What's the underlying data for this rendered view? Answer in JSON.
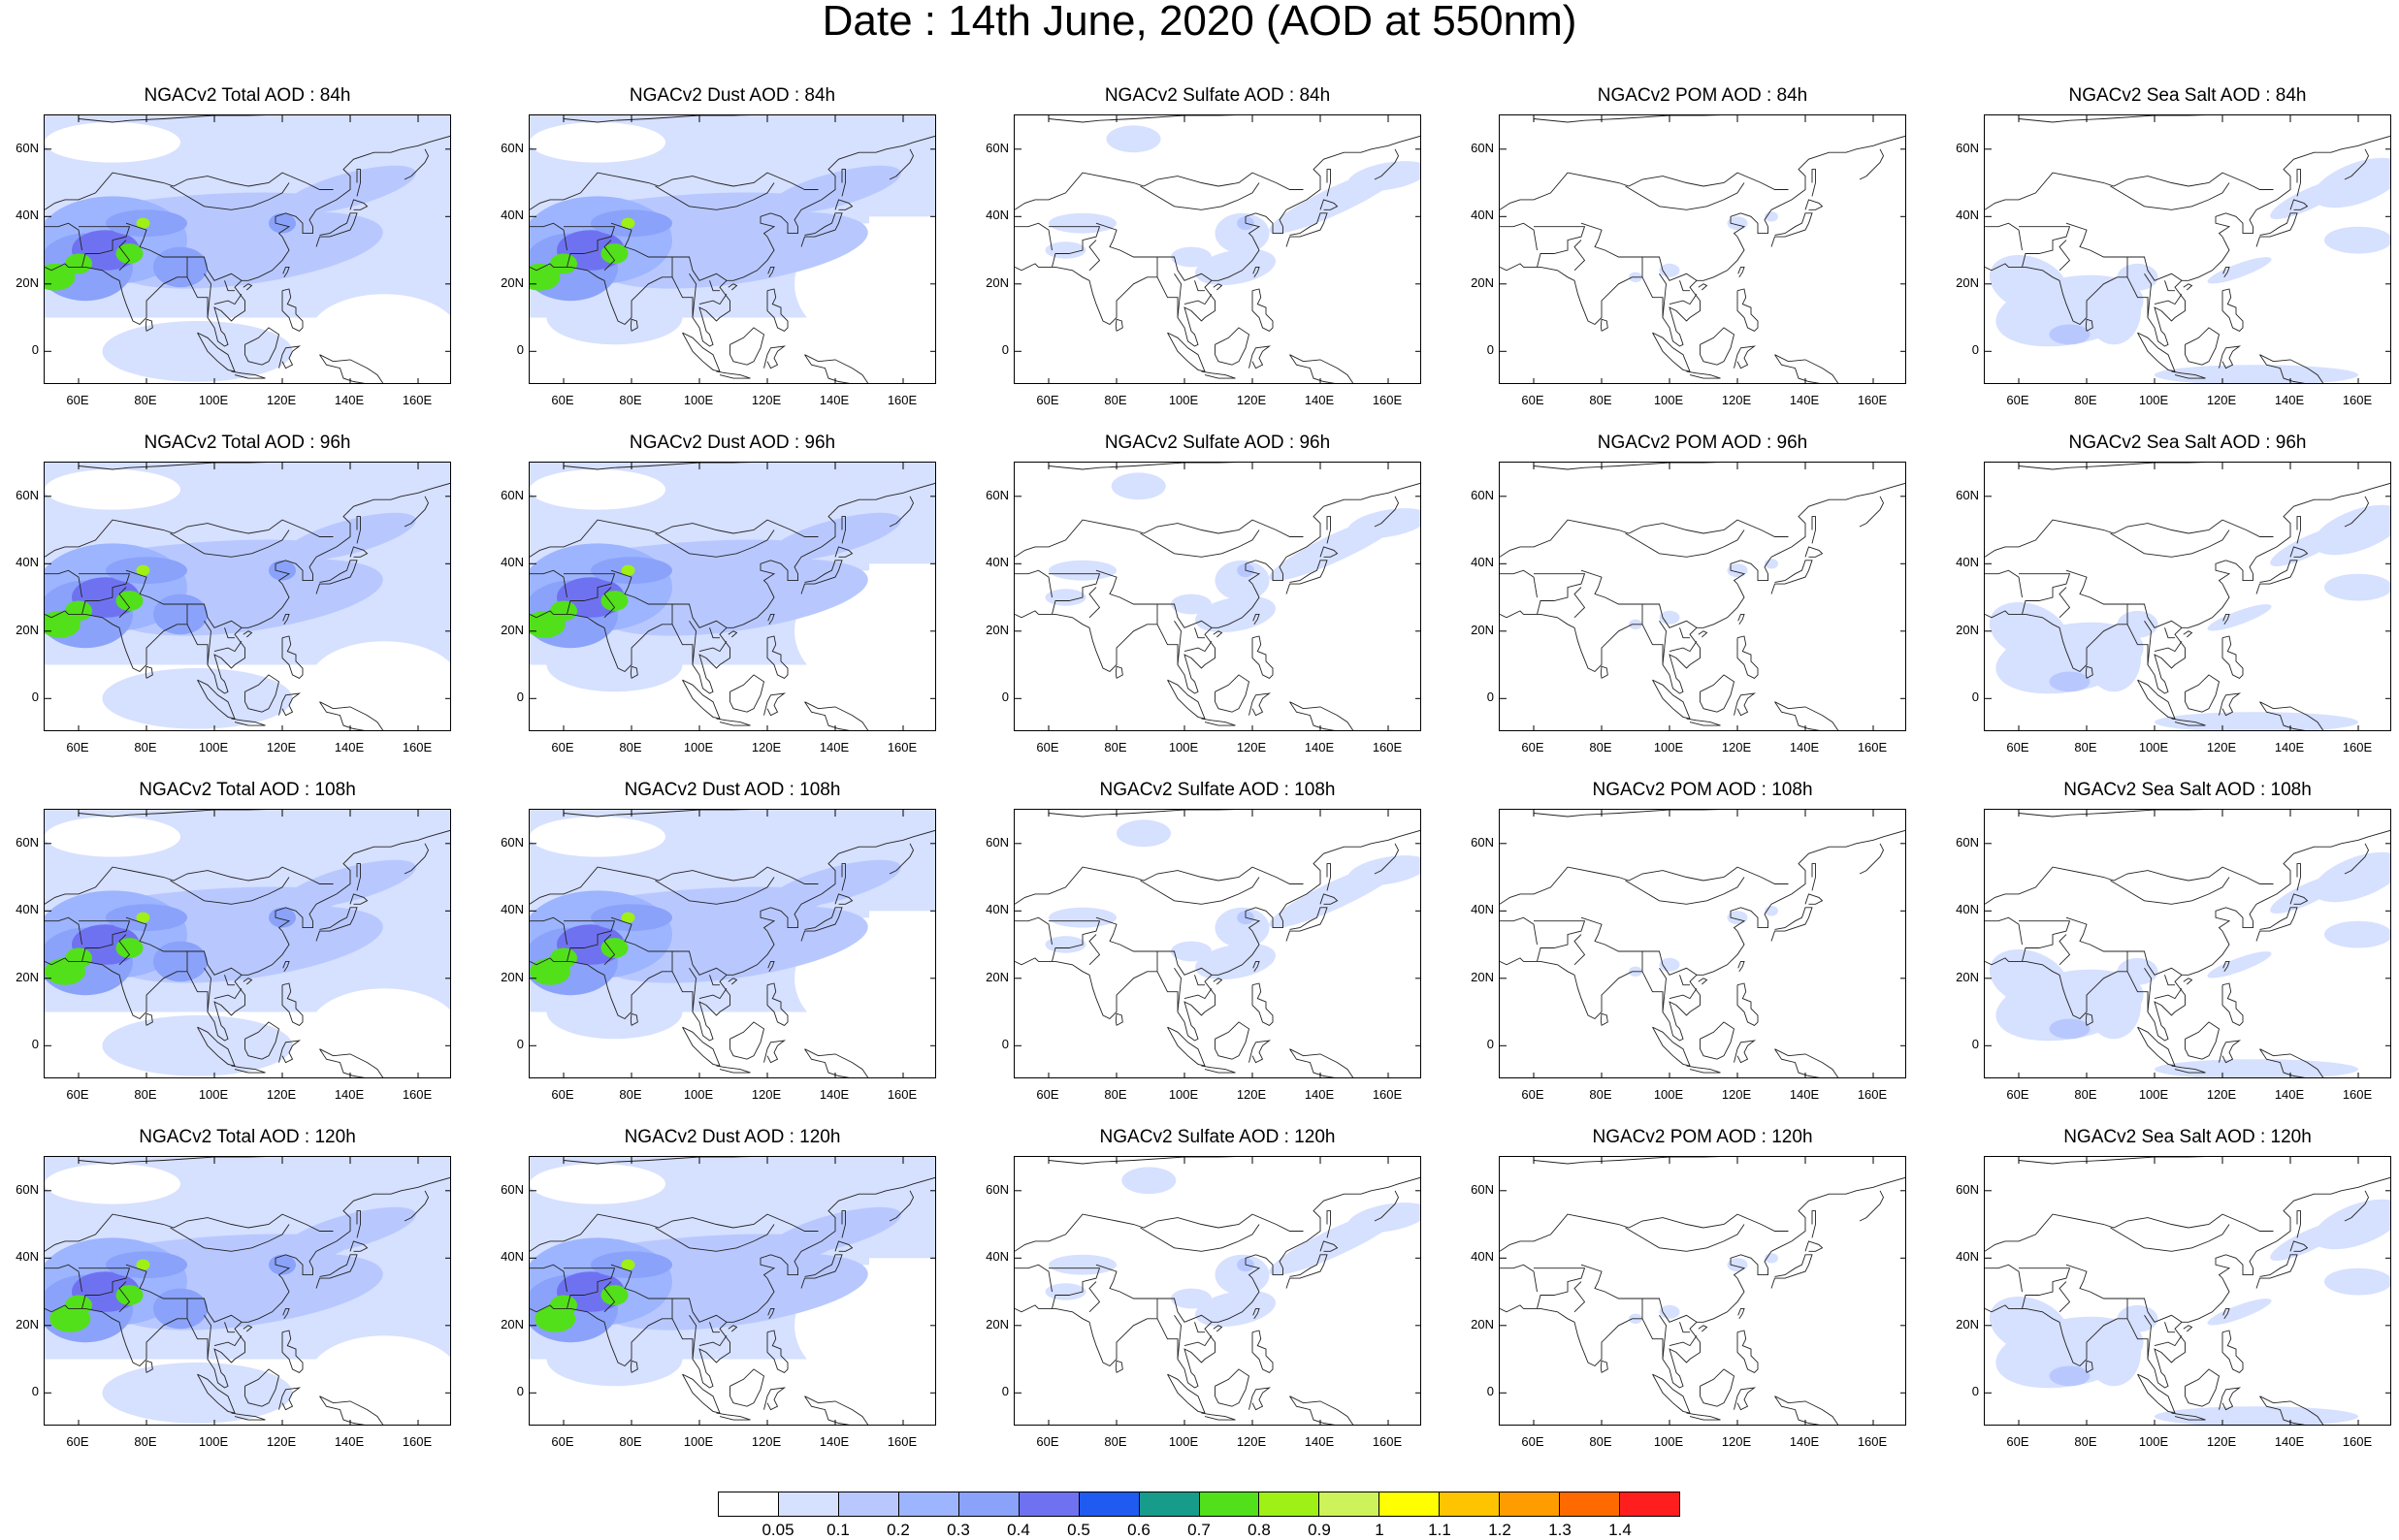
{
  "title": "Date : 14th June, 2020 (AOD at 550nm)",
  "panels": [
    [
      {
        "title": "NGACv2 Total AOD : 84h",
        "species": "total"
      },
      {
        "title": "NGACv2 Dust AOD : 84h",
        "species": "dust"
      },
      {
        "title": "NGACv2 Sulfate AOD : 84h",
        "species": "sulfate"
      },
      {
        "title": "NGACv2 POM AOD : 84h",
        "species": "pom"
      },
      {
        "title": "NGACv2 Sea Salt AOD : 84h",
        "species": "seasalt"
      }
    ],
    [
      {
        "title": "NGACv2 Total AOD : 96h",
        "species": "total"
      },
      {
        "title": "NGACv2 Dust AOD : 96h",
        "species": "dust"
      },
      {
        "title": "NGACv2 Sulfate AOD : 96h",
        "species": "sulfate"
      },
      {
        "title": "NGACv2 POM AOD : 96h",
        "species": "pom"
      },
      {
        "title": "NGACv2 Sea Salt AOD : 96h",
        "species": "seasalt"
      }
    ],
    [
      {
        "title": "NGACv2 Total AOD : 108h",
        "species": "total"
      },
      {
        "title": "NGACv2 Dust AOD : 108h",
        "species": "dust"
      },
      {
        "title": "NGACv2 Sulfate AOD : 108h",
        "species": "sulfate"
      },
      {
        "title": "NGACv2 POM AOD : 108h",
        "species": "pom"
      },
      {
        "title": "NGACv2 Sea Salt AOD : 108h",
        "species": "seasalt"
      }
    ],
    [
      {
        "title": "NGACv2 Total AOD : 120h",
        "species": "total"
      },
      {
        "title": "NGACv2 Dust AOD : 120h",
        "species": "dust"
      },
      {
        "title": "NGACv2 Sulfate AOD : 120h",
        "species": "sulfate"
      },
      {
        "title": "NGACv2 POM AOD : 120h",
        "species": "pom"
      },
      {
        "title": "NGACv2 Sea Salt  AOD : 120h",
        "species": "seasalt"
      }
    ]
  ],
  "axes": {
    "lon_ticks": [
      "60E",
      "80E",
      "100E",
      "120E",
      "140E",
      "160E"
    ],
    "lon_values": [
      60,
      80,
      100,
      120,
      140,
      160
    ],
    "lat_ticks": [
      "60N",
      "40N",
      "20N",
      "0"
    ],
    "lat_values": [
      60,
      40,
      20,
      0
    ],
    "lon_range": [
      50,
      170
    ],
    "lat_range": [
      -10,
      70
    ]
  },
  "colorbar": {
    "labels": [
      "0.05",
      "0.1",
      "0.2",
      "0.3",
      "0.4",
      "0.5",
      "0.6",
      "0.7",
      "0.8",
      "0.9",
      "1",
      "1.1",
      "1.2",
      "1.3",
      "1.4"
    ],
    "colors": [
      "#ffffff",
      "#d6e0ff",
      "#b8c8ff",
      "#9db4ff",
      "#8aa2fa",
      "#6f72f0",
      "#1f5bf0",
      "#179c8c",
      "#52e01a",
      "#9ef015",
      "#cdf25a",
      "#ffff00",
      "#ffc400",
      "#ff9d00",
      "#ff6a00",
      "#ff1e1e"
    ]
  }
}
